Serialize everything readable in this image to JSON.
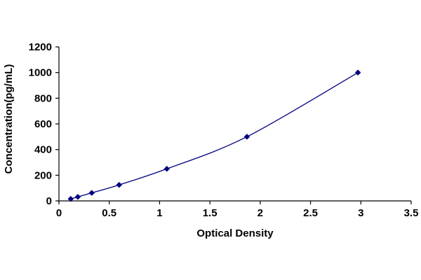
{
  "chart_data": {
    "type": "scatter",
    "title": "",
    "xlabel": "Optical Density",
    "ylabel": "Concentration(pg/mL)",
    "xlim": [
      0,
      3.5
    ],
    "ylim": [
      0,
      1200
    ],
    "x_ticks": [
      "0",
      "0.5",
      "1",
      "1.5",
      "2",
      "2.5",
      "3",
      "3.5"
    ],
    "y_ticks": [
      "0",
      "200",
      "400",
      "600",
      "800",
      "1000",
      "1200"
    ],
    "grid": false,
    "legend": "none",
    "smooth_line": true,
    "colors": {
      "series": "#000080",
      "axis": "#000000"
    },
    "series": [
      {
        "x": [
          0.117,
          0.188,
          0.326,
          0.598,
          1.072,
          1.868,
          2.971
        ],
        "y": [
          15.6,
          31.2,
          62.5,
          125,
          250,
          500,
          1000
        ]
      }
    ]
  }
}
